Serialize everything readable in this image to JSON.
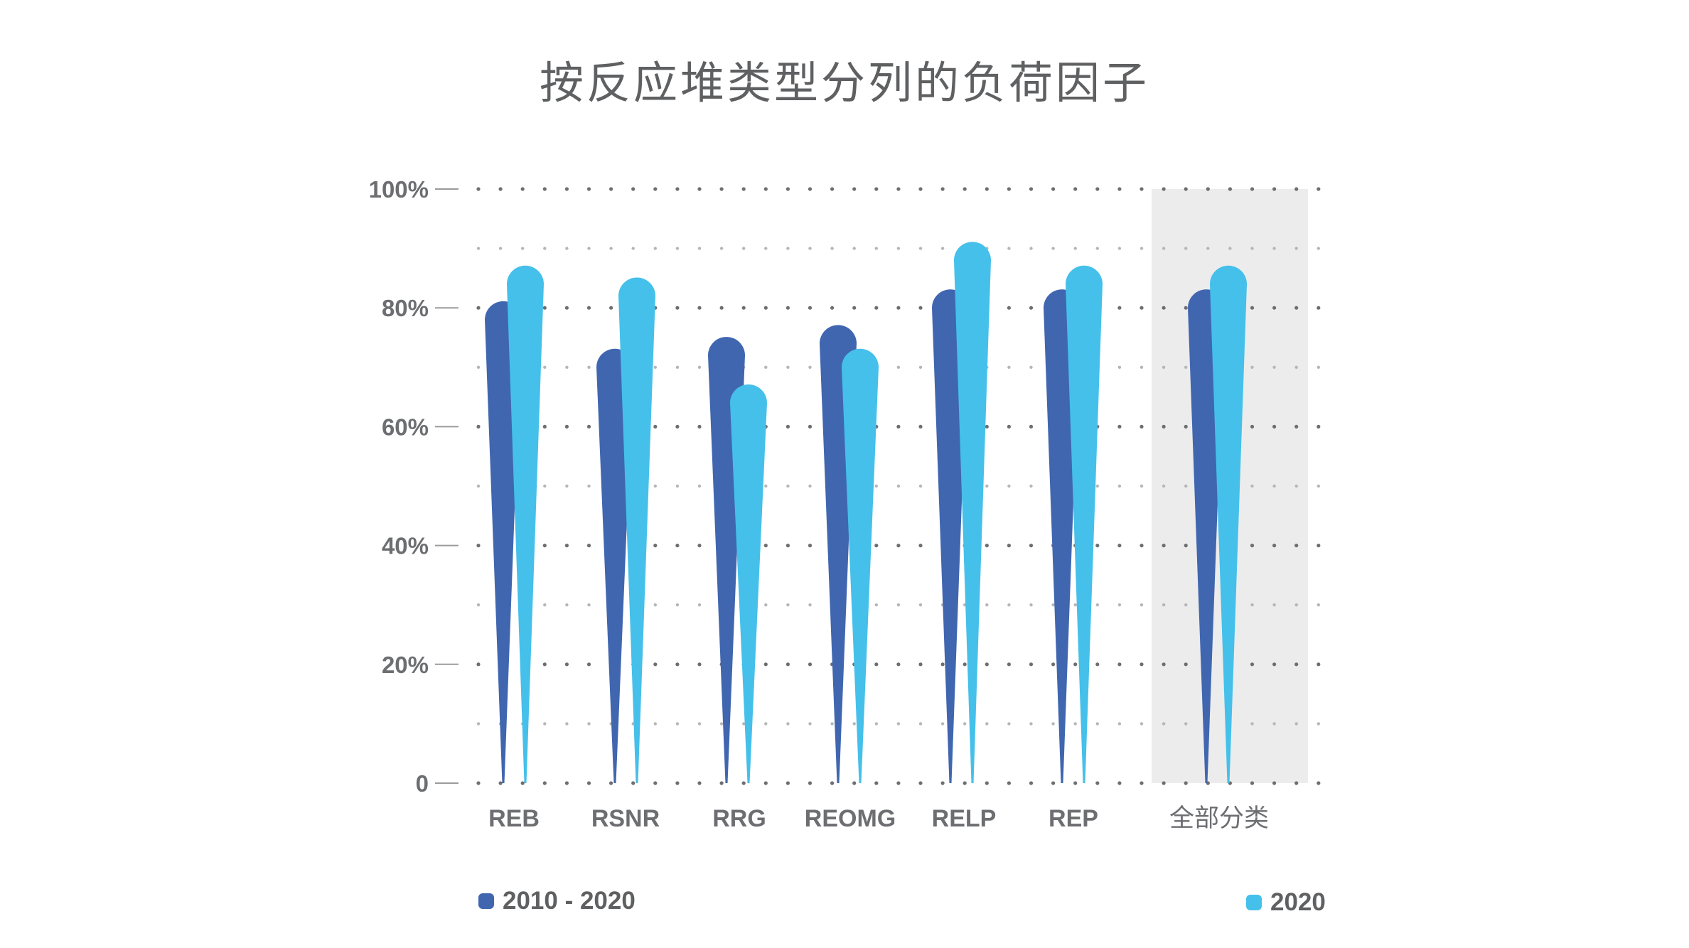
{
  "chart_data": {
    "type": "bar",
    "title": "按反应堆类型分列的负荷因子",
    "categories": [
      "REB",
      "RSNR",
      "RRG",
      "REOMG",
      "RELP",
      "REP",
      "全部分类"
    ],
    "series": [
      {
        "name": "2010 - 2020",
        "color": "#4066b0",
        "values": [
          78,
          70,
          72,
          74,
          80,
          80,
          80
        ]
      },
      {
        "name": "2020",
        "color": "#45c0ea",
        "values": [
          84,
          82,
          64,
          70,
          88,
          84,
          84
        ]
      }
    ],
    "ylim": [
      0,
      100
    ],
    "yticks": [
      "0",
      "20%",
      "40%",
      "60%",
      "80%",
      "100%"
    ],
    "ytick_values": [
      0,
      20,
      40,
      60,
      80,
      100
    ],
    "grid": "dotted",
    "highlighted_category": "全部分类",
    "highlight_color": "#ececec",
    "legend_position": "bottom"
  }
}
